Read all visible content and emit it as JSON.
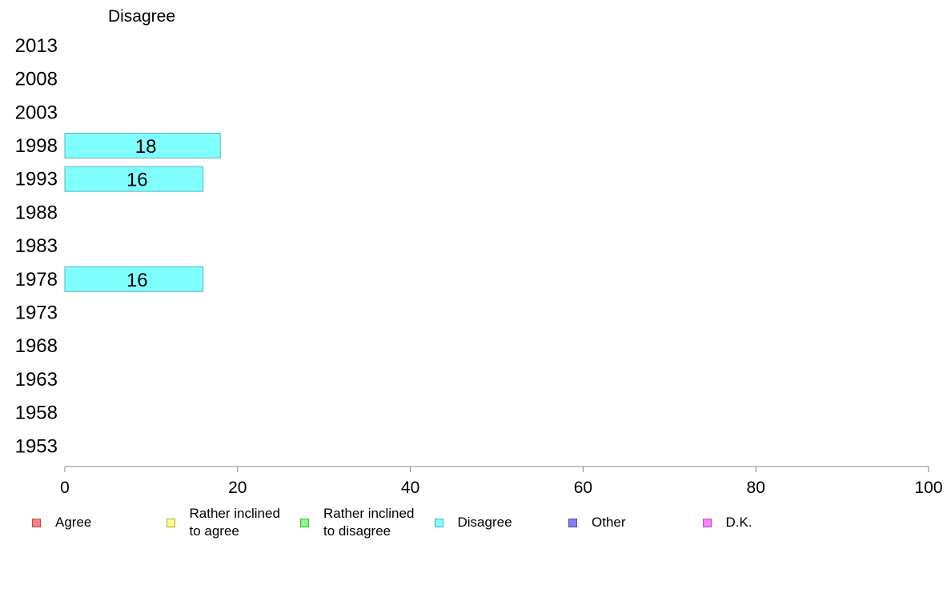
{
  "chart_data": {
    "type": "bar",
    "orientation": "horizontal",
    "title": "Disagree",
    "categories": [
      "2013",
      "2008",
      "2003",
      "1998",
      "1993",
      "1988",
      "1983",
      "1978",
      "1973",
      "1968",
      "1963",
      "1958",
      "1953"
    ],
    "series": [
      {
        "name": "Disagree",
        "color": "#80ffff",
        "values": [
          null,
          null,
          null,
          18,
          16,
          null,
          null,
          16,
          null,
          null,
          null,
          null,
          null
        ],
        "labels": [
          "",
          "",
          "",
          "18",
          "16",
          "",
          "",
          "16",
          "",
          "",
          "",
          "",
          ""
        ]
      }
    ],
    "xlim": [
      0,
      100
    ],
    "xticks": [
      "0",
      "20",
      "40",
      "60",
      "80",
      "100"
    ],
    "grid": false,
    "legend_placement": "bottom",
    "legend": [
      {
        "label": "Agree",
        "color": "#ff8080"
      },
      {
        "label": "Rather inclined\nto agree",
        "color": "#ffff80"
      },
      {
        "label": "Rather inclined\nto disagree",
        "color": "#80ff80"
      },
      {
        "label": "Disagree",
        "color": "#80ffff"
      },
      {
        "label": "Other",
        "color": "#8080ff"
      },
      {
        "label": "D.K.",
        "color": "#ff80ff"
      }
    ]
  }
}
